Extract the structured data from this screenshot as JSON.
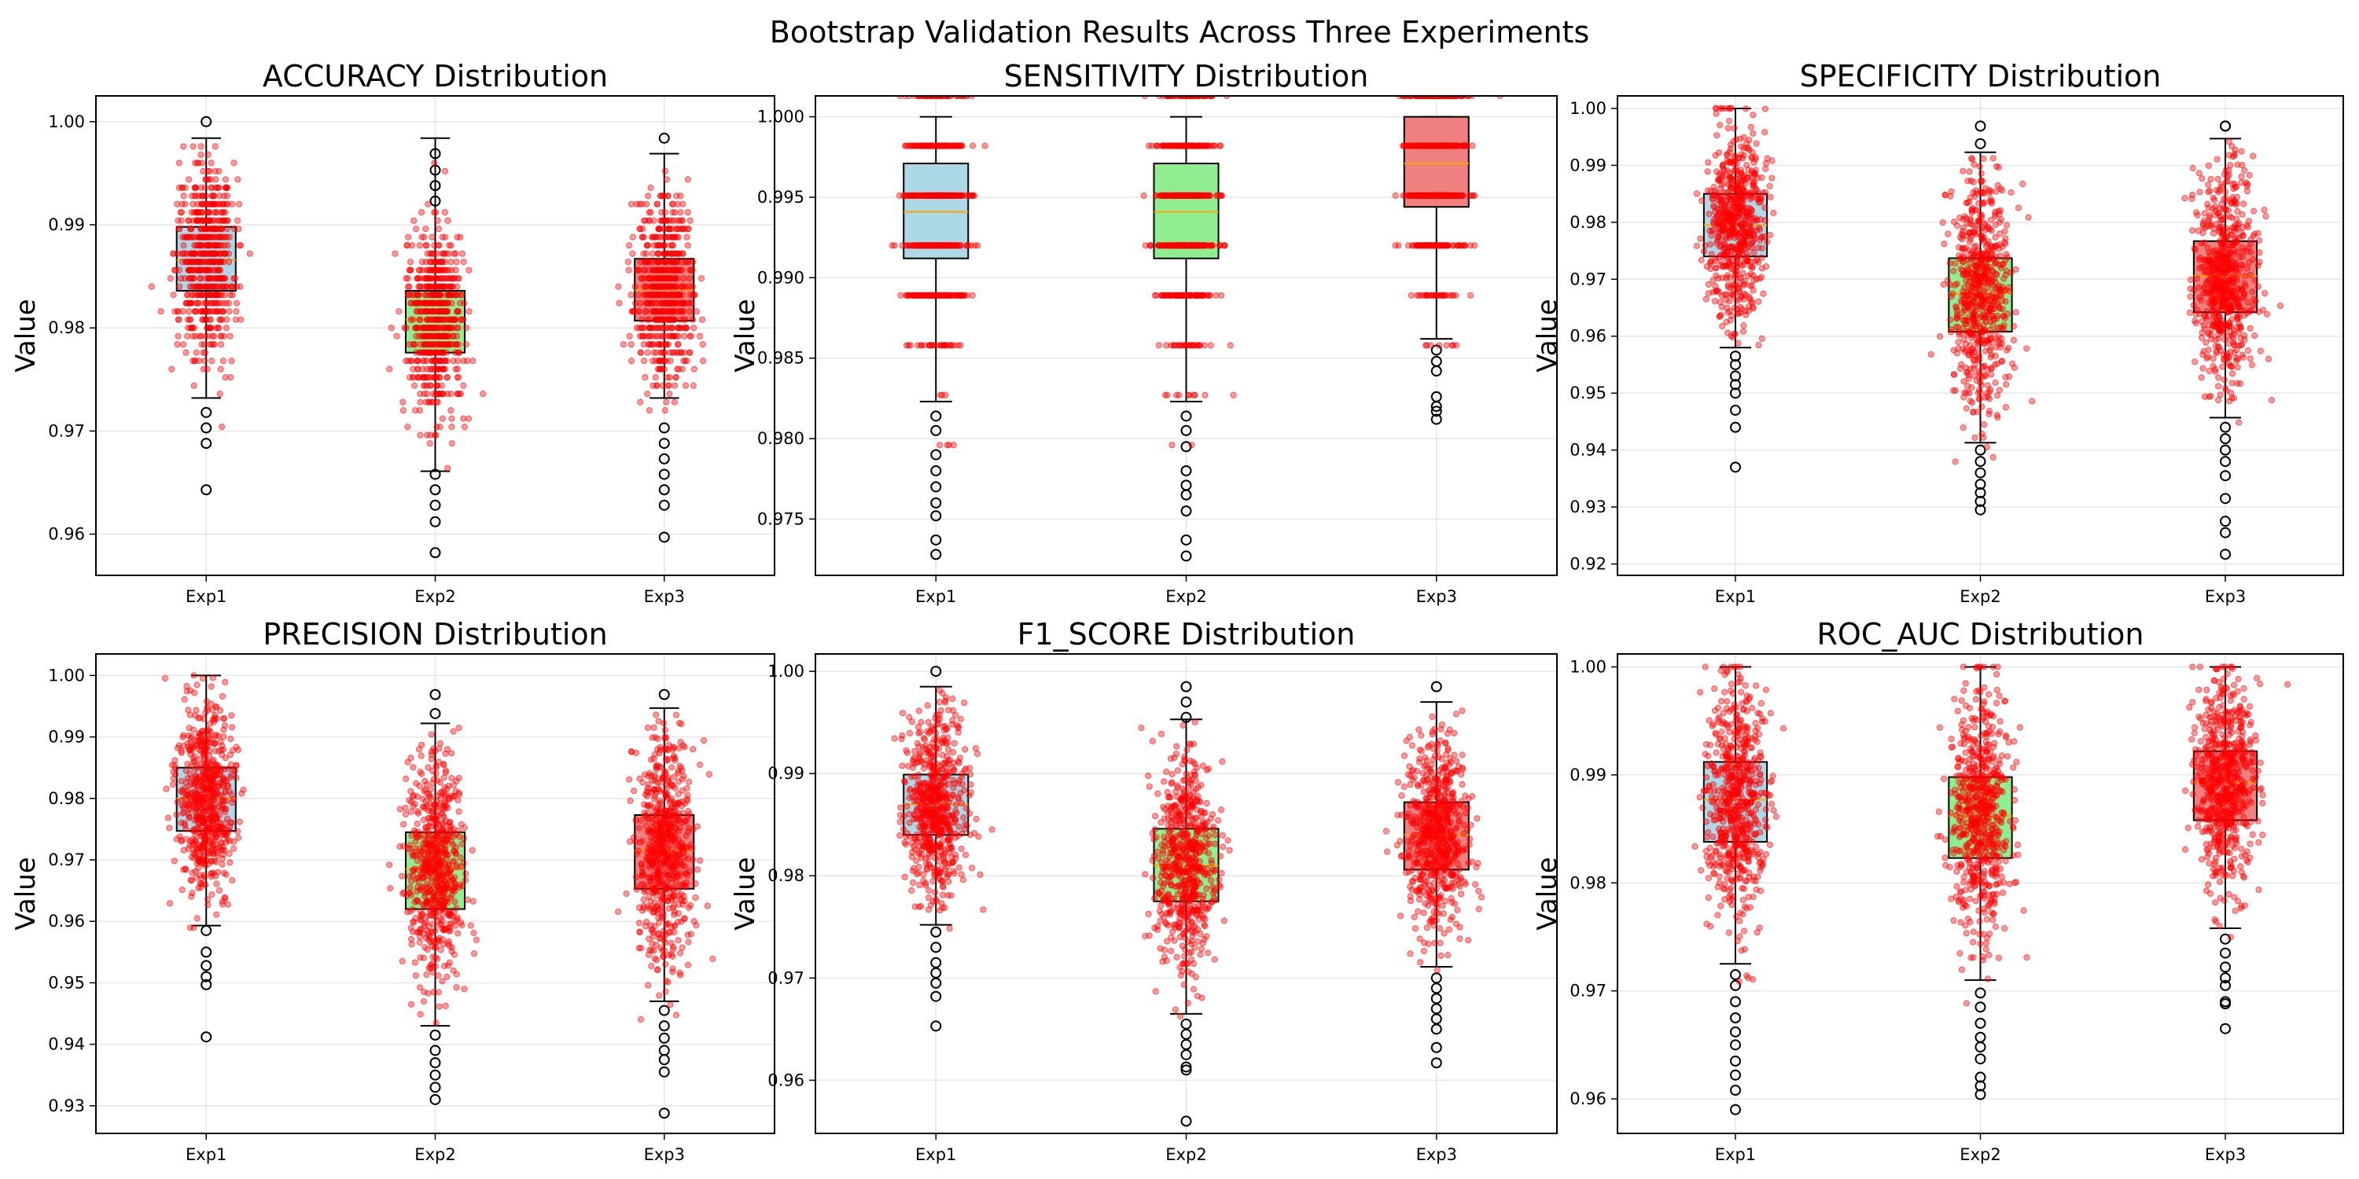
{
  "figure": {
    "title": "Bootstrap Validation Results Across Three Experiments",
    "colors": {
      "exp1_box": "#add8e6",
      "exp2_box": "#90ee90",
      "exp3_box": "#f08080",
      "points": "#ff0000",
      "median": "#ffa500",
      "grid": "#e6e6e6",
      "axis": "#000000"
    }
  },
  "chart_data": [
    {
      "type": "box",
      "title": "ACCURACY Distribution",
      "xlabel": "",
      "ylabel": "Value",
      "categories": [
        "Exp1",
        "Exp2",
        "Exp3"
      ],
      "ylim": [
        0.956,
        1.0025
      ],
      "yticks": [
        "0.96",
        "0.97",
        "0.98",
        "0.99",
        "1.00"
      ],
      "grid": true,
      "discrete_step": 0.0008,
      "boxes": [
        {
          "name": "Exp1",
          "min": 0.9732,
          "q1": 0.9836,
          "median": 0.9866,
          "q3": 0.9898,
          "max": 0.9984,
          "outliers_low": [
            0.9718,
            0.9703,
            0.9688,
            0.9643
          ],
          "outliers_high": [
            1.0
          ]
        },
        {
          "name": "Exp2",
          "min": 0.9661,
          "q1": 0.9776,
          "median": 0.9808,
          "q3": 0.9836,
          "max": 0.9984,
          "outliers_low": [
            0.9658,
            0.9643,
            0.9628,
            0.9612,
            0.9582
          ],
          "outliers_high": [
            0.9969,
            0.9953,
            0.9938,
            0.9923
          ]
        },
        {
          "name": "Exp3",
          "min": 0.9732,
          "q1": 0.9807,
          "median": 0.9837,
          "q3": 0.9867,
          "max": 0.9969,
          "outliers_low": [
            0.9703,
            0.9688,
            0.9673,
            0.9658,
            0.9643,
            0.9628,
            0.9597
          ],
          "outliers_high": [
            0.9984
          ]
        }
      ]
    },
    {
      "type": "box",
      "title": "SENSITIVITY Distribution",
      "xlabel": "",
      "ylabel": "Value",
      "categories": [
        "Exp1",
        "Exp2",
        "Exp3"
      ],
      "ylim": [
        0.9715,
        1.0013
      ],
      "yticks": [
        "0.975",
        "0.980",
        "0.985",
        "0.990",
        "0.995",
        "1.000"
      ],
      "grid": true,
      "discrete_step": 0.0031,
      "boxes": [
        {
          "name": "Exp1",
          "min": 0.9823,
          "q1": 0.9912,
          "median": 0.9941,
          "q3": 0.9971,
          "max": 1.0,
          "outliers_low": [
            0.9814,
            0.9805,
            0.979,
            0.978,
            0.977,
            0.976,
            0.9752,
            0.9737,
            0.9728
          ],
          "outliers_high": []
        },
        {
          "name": "Exp2",
          "min": 0.9823,
          "q1": 0.9912,
          "median": 0.9941,
          "q3": 0.9971,
          "max": 1.0,
          "outliers_low": [
            0.9814,
            0.9805,
            0.9795,
            0.978,
            0.9771,
            0.9765,
            0.9755,
            0.9737,
            0.9727
          ],
          "outliers_high": []
        },
        {
          "name": "Exp3",
          "min": 0.9862,
          "q1": 0.9944,
          "median": 0.9971,
          "q3": 1.0,
          "max": 1.0,
          "outliers_low": [
            0.9855,
            0.9848,
            0.9842,
            0.9826,
            0.982,
            0.9817,
            0.9812
          ],
          "outliers_high": []
        }
      ]
    },
    {
      "type": "box",
      "title": "SPECIFICITY Distribution",
      "xlabel": "",
      "ylabel": "Value",
      "categories": [
        "Exp1",
        "Exp2",
        "Exp3"
      ],
      "ylim": [
        0.918,
        1.0022
      ],
      "yticks": [
        "0.92",
        "0.93",
        "0.94",
        "0.95",
        "0.96",
        "0.97",
        "0.98",
        "0.99",
        "1.00"
      ],
      "grid": true,
      "discrete_step": 0,
      "boxes": [
        {
          "name": "Exp1",
          "min": 0.958,
          "q1": 0.974,
          "median": 0.9795,
          "q3": 0.985,
          "max": 1.0,
          "outliers_low": [
            0.9565,
            0.955,
            0.953,
            0.9515,
            0.95,
            0.947,
            0.944,
            0.937
          ],
          "outliers_high": []
        },
        {
          "name": "Exp2",
          "min": 0.9413,
          "q1": 0.9608,
          "median": 0.9675,
          "q3": 0.9737,
          "max": 0.9923,
          "outliers_low": [
            0.94,
            0.938,
            0.936,
            0.934,
            0.9325,
            0.931,
            0.9295
          ],
          "outliers_high": [
            0.9938,
            0.9969
          ]
        },
        {
          "name": "Exp3",
          "min": 0.9457,
          "q1": 0.9642,
          "median": 0.9706,
          "q3": 0.9767,
          "max": 0.9947,
          "outliers_low": [
            0.944,
            0.942,
            0.94,
            0.938,
            0.9355,
            0.9315,
            0.9275,
            0.9255,
            0.9217
          ],
          "outliers_high": [
            0.9969,
            0.9969
          ]
        }
      ]
    },
    {
      "type": "box",
      "title": "PRECISION Distribution",
      "xlabel": "",
      "ylabel": "Value",
      "categories": [
        "Exp1",
        "Exp2",
        "Exp3"
      ],
      "ylim": [
        0.9255,
        1.0035
      ],
      "yticks": [
        "0.93",
        "0.94",
        "0.95",
        "0.96",
        "0.97",
        "0.98",
        "0.99",
        "1.00"
      ],
      "grid": true,
      "discrete_step": 0,
      "boxes": [
        {
          "name": "Exp1",
          "min": 0.9593,
          "q1": 0.9747,
          "median": 0.98,
          "q3": 0.985,
          "max": 1.0,
          "outliers_low": [
            0.9585,
            0.955,
            0.9528,
            0.951,
            0.9497,
            0.9412
          ],
          "outliers_high": []
        },
        {
          "name": "Exp2",
          "min": 0.943,
          "q1": 0.962,
          "median": 0.9685,
          "q3": 0.9745,
          "max": 0.9922,
          "outliers_low": [
            0.9415,
            0.939,
            0.937,
            0.935,
            0.933,
            0.931
          ],
          "outliers_high": [
            0.9938,
            0.9969
          ]
        },
        {
          "name": "Exp3",
          "min": 0.947,
          "q1": 0.9653,
          "median": 0.9715,
          "q3": 0.9773,
          "max": 0.9947,
          "outliers_low": [
            0.9455,
            0.943,
            0.941,
            0.939,
            0.9375,
            0.9355,
            0.9288
          ],
          "outliers_high": [
            0.9969
          ]
        }
      ]
    },
    {
      "type": "box",
      "title": "F1_SCORE Distribution",
      "xlabel": "",
      "ylabel": "Value",
      "categories": [
        "Exp1",
        "Exp2",
        "Exp3"
      ],
      "ylim": [
        0.9548,
        1.0017
      ],
      "yticks": [
        "0.96",
        "0.97",
        "0.98",
        "0.99",
        "1.00"
      ],
      "grid": true,
      "discrete_step": 0,
      "boxes": [
        {
          "name": "Exp1",
          "min": 0.9752,
          "q1": 0.984,
          "median": 0.987,
          "q3": 0.9899,
          "max": 0.9985,
          "outliers_low": [
            0.9745,
            0.973,
            0.9715,
            0.9705,
            0.9695,
            0.9682,
            0.9653
          ],
          "outliers_high": [
            1.0
          ]
        },
        {
          "name": "Exp2",
          "min": 0.9665,
          "q1": 0.9775,
          "median": 0.981,
          "q3": 0.9846,
          "max": 0.9953,
          "outliers_low": [
            0.9655,
            0.9645,
            0.9635,
            0.9625,
            0.9613,
            0.961,
            0.956
          ],
          "outliers_high": [
            0.9955,
            0.997,
            0.9985
          ]
        },
        {
          "name": "Exp3",
          "min": 0.9711,
          "q1": 0.9806,
          "median": 0.984,
          "q3": 0.9872,
          "max": 0.997,
          "outliers_low": [
            0.97,
            0.969,
            0.968,
            0.967,
            0.966,
            0.965,
            0.9632,
            0.9617
          ],
          "outliers_high": [
            0.9985
          ]
        }
      ]
    },
    {
      "type": "box",
      "title": "ROC_AUC Distribution",
      "xlabel": "",
      "ylabel": "Value",
      "categories": [
        "Exp1",
        "Exp2",
        "Exp3"
      ],
      "ylim": [
        0.9568,
        1.0012
      ],
      "yticks": [
        "0.96",
        "0.97",
        "0.98",
        "0.99",
        "1.00"
      ],
      "grid": true,
      "discrete_step": 0,
      "boxes": [
        {
          "name": "Exp1",
          "min": 0.9725,
          "q1": 0.9838,
          "median": 0.9877,
          "q3": 0.9912,
          "max": 1.0,
          "outliers_low": [
            0.9715,
            0.9705,
            0.969,
            0.9675,
            0.9662,
            0.965,
            0.9635,
            0.9622,
            0.9608,
            0.959
          ],
          "outliers_high": []
        },
        {
          "name": "Exp2",
          "min": 0.971,
          "q1": 0.9823,
          "median": 0.9862,
          "q3": 0.9898,
          "max": 1.0,
          "outliers_low": [
            0.9698,
            0.9685,
            0.967,
            0.9657,
            0.9648,
            0.9637,
            0.962,
            0.9612,
            0.9604
          ],
          "outliers_high": []
        },
        {
          "name": "Exp3",
          "min": 0.9758,
          "q1": 0.9858,
          "median": 0.9893,
          "q3": 0.9922,
          "max": 1.0,
          "outliers_low": [
            0.9748,
            0.9735,
            0.9722,
            0.9712,
            0.9705,
            0.969,
            0.9688,
            0.9665
          ],
          "outliers_high": []
        }
      ]
    }
  ]
}
